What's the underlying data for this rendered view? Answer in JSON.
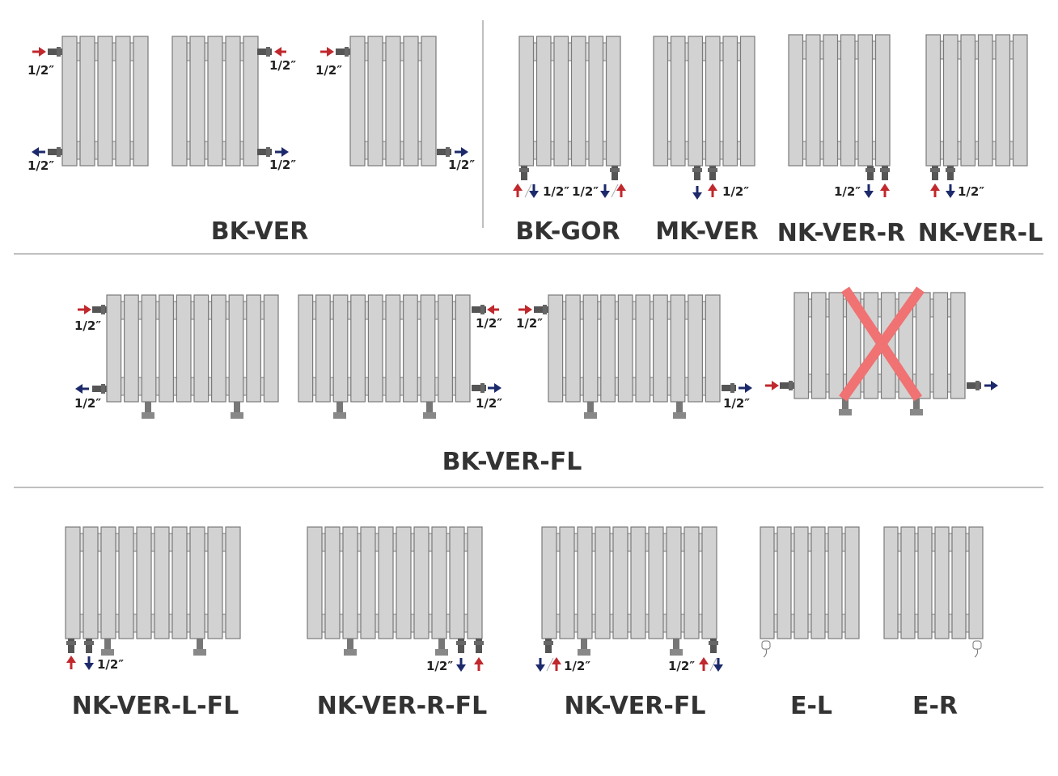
{
  "connection_size": "1/2″",
  "colors": {
    "supply": "#c0282d",
    "return": "#1c2a6b",
    "radiator": "#d2d2d2",
    "outline": "#7a7a7a",
    "crossed_out": "#f07272"
  },
  "groups": {
    "bk_ver": "BK-VER",
    "bk_gor": "BK-GOR",
    "mk_ver": "MK-VER",
    "nk_ver_r": "NK-VER-R",
    "nk_ver_l": "NK-VER-L",
    "bk_ver_fl": "BK-VER-FL",
    "nk_ver_l_fl": "NK-VER-L-FL",
    "nk_ver_r_fl": "NK-VER-R-FL",
    "nk_ver_fl": "NK-VER-FL",
    "e_l": "E-L",
    "e_r": "E-R"
  },
  "icons": [
    "radiator-icon",
    "pipe-connector-icon",
    "supply-arrow-icon",
    "return-arrow-icon",
    "electric-plug-icon",
    "crossed-out-icon"
  ]
}
